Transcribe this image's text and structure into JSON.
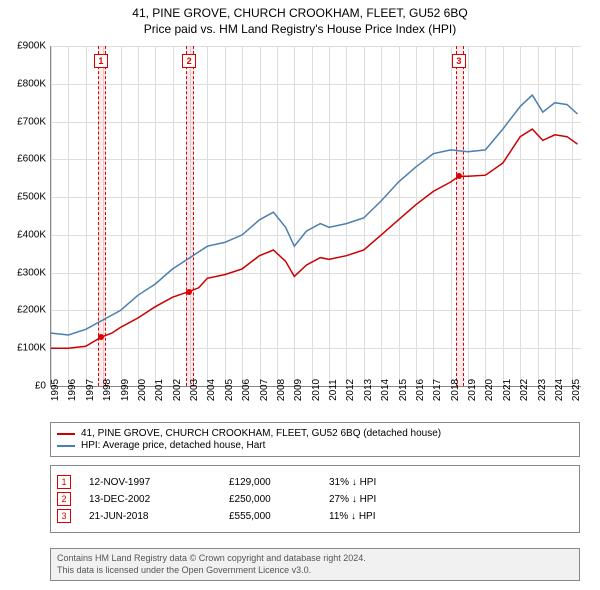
{
  "title": "41, PINE GROVE, CHURCH CROOKHAM, FLEET, GU52 6BQ",
  "subtitle": "Price paid vs. HM Land Registry's House Price Index (HPI)",
  "chart": {
    "type": "line",
    "background_color": "#ffffff",
    "grid_color": "#dddddd",
    "axis_color": "#888888",
    "xlim": [
      1995,
      2025.5
    ],
    "ylim": [
      0,
      900000
    ],
    "ytick_step": 100000,
    "yticks": [
      "£0",
      "£100K",
      "£200K",
      "£300K",
      "£400K",
      "£500K",
      "£600K",
      "£700K",
      "£800K",
      "£900K"
    ],
    "xticks": [
      "1995",
      "1996",
      "1997",
      "1998",
      "1999",
      "2000",
      "2001",
      "2002",
      "2003",
      "2004",
      "2005",
      "2006",
      "2007",
      "2008",
      "2009",
      "2010",
      "2011",
      "2012",
      "2013",
      "2014",
      "2015",
      "2016",
      "2017",
      "2018",
      "2019",
      "2020",
      "2021",
      "2022",
      "2023",
      "2024",
      "2025"
    ],
    "series": [
      {
        "name": "property",
        "color": "#cc0000",
        "line_width": 1.5,
        "points": [
          [
            1995,
            100000
          ],
          [
            1996,
            100000
          ],
          [
            1997,
            105000
          ],
          [
            1997.87,
            129000
          ],
          [
            1998.5,
            140000
          ],
          [
            1999,
            155000
          ],
          [
            2000,
            180000
          ],
          [
            2001,
            210000
          ],
          [
            2002,
            235000
          ],
          [
            2002.95,
            250000
          ],
          [
            2003.5,
            260000
          ],
          [
            2004,
            285000
          ],
          [
            2005,
            295000
          ],
          [
            2006,
            310000
          ],
          [
            2007,
            345000
          ],
          [
            2007.8,
            360000
          ],
          [
            2008.5,
            330000
          ],
          [
            2009,
            290000
          ],
          [
            2009.7,
            320000
          ],
          [
            2010.5,
            340000
          ],
          [
            2011,
            335000
          ],
          [
            2012,
            345000
          ],
          [
            2013,
            360000
          ],
          [
            2014,
            400000
          ],
          [
            2015,
            440000
          ],
          [
            2016,
            480000
          ],
          [
            2017,
            515000
          ],
          [
            2018,
            540000
          ],
          [
            2018.47,
            555000
          ],
          [
            2019,
            555000
          ],
          [
            2020,
            558000
          ],
          [
            2021,
            590000
          ],
          [
            2022,
            660000
          ],
          [
            2022.7,
            680000
          ],
          [
            2023.3,
            650000
          ],
          [
            2024,
            665000
          ],
          [
            2024.7,
            660000
          ],
          [
            2025.3,
            640000
          ]
        ]
      },
      {
        "name": "hpi",
        "color": "#4a7fb0",
        "line_width": 1.5,
        "points": [
          [
            1995,
            140000
          ],
          [
            1996,
            135000
          ],
          [
            1997,
            150000
          ],
          [
            1998,
            175000
          ],
          [
            1999,
            200000
          ],
          [
            2000,
            240000
          ],
          [
            2001,
            270000
          ],
          [
            2002,
            310000
          ],
          [
            2003,
            340000
          ],
          [
            2004,
            370000
          ],
          [
            2005,
            380000
          ],
          [
            2006,
            400000
          ],
          [
            2007,
            440000
          ],
          [
            2007.8,
            460000
          ],
          [
            2008.5,
            420000
          ],
          [
            2009,
            370000
          ],
          [
            2009.7,
            410000
          ],
          [
            2010.5,
            430000
          ],
          [
            2011,
            420000
          ],
          [
            2012,
            430000
          ],
          [
            2013,
            445000
          ],
          [
            2014,
            490000
          ],
          [
            2015,
            540000
          ],
          [
            2016,
            580000
          ],
          [
            2017,
            615000
          ],
          [
            2018,
            625000
          ],
          [
            2019,
            620000
          ],
          [
            2020,
            625000
          ],
          [
            2021,
            680000
          ],
          [
            2022,
            740000
          ],
          [
            2022.7,
            770000
          ],
          [
            2023.3,
            725000
          ],
          [
            2024,
            750000
          ],
          [
            2024.7,
            745000
          ],
          [
            2025.3,
            720000
          ]
        ]
      }
    ],
    "sale_markers": [
      {
        "n": "1",
        "x": 1997.87,
        "y": 129000
      },
      {
        "n": "2",
        "x": 2002.95,
        "y": 250000
      },
      {
        "n": "3",
        "x": 2018.47,
        "y": 555000
      }
    ]
  },
  "legend": {
    "items": [
      {
        "color": "#cc0000",
        "label": "41, PINE GROVE, CHURCH CROOKHAM, FLEET, GU52 6BQ (detached house)"
      },
      {
        "color": "#4a7fb0",
        "label": "HPI: Average price, detached house, Hart"
      }
    ]
  },
  "sales": [
    {
      "n": "1",
      "date": "12-NOV-1997",
      "price": "£129,000",
      "diff": "31% ↓ HPI"
    },
    {
      "n": "2",
      "date": "13-DEC-2002",
      "price": "£250,000",
      "diff": "27% ↓ HPI"
    },
    {
      "n": "3",
      "date": "21-JUN-2018",
      "price": "£555,000",
      "diff": "11% ↓ HPI"
    }
  ],
  "footer": {
    "line1": "Contains HM Land Registry data © Crown copyright and database right 2024.",
    "line2": "This data is licensed under the Open Government Licence v3.0."
  }
}
